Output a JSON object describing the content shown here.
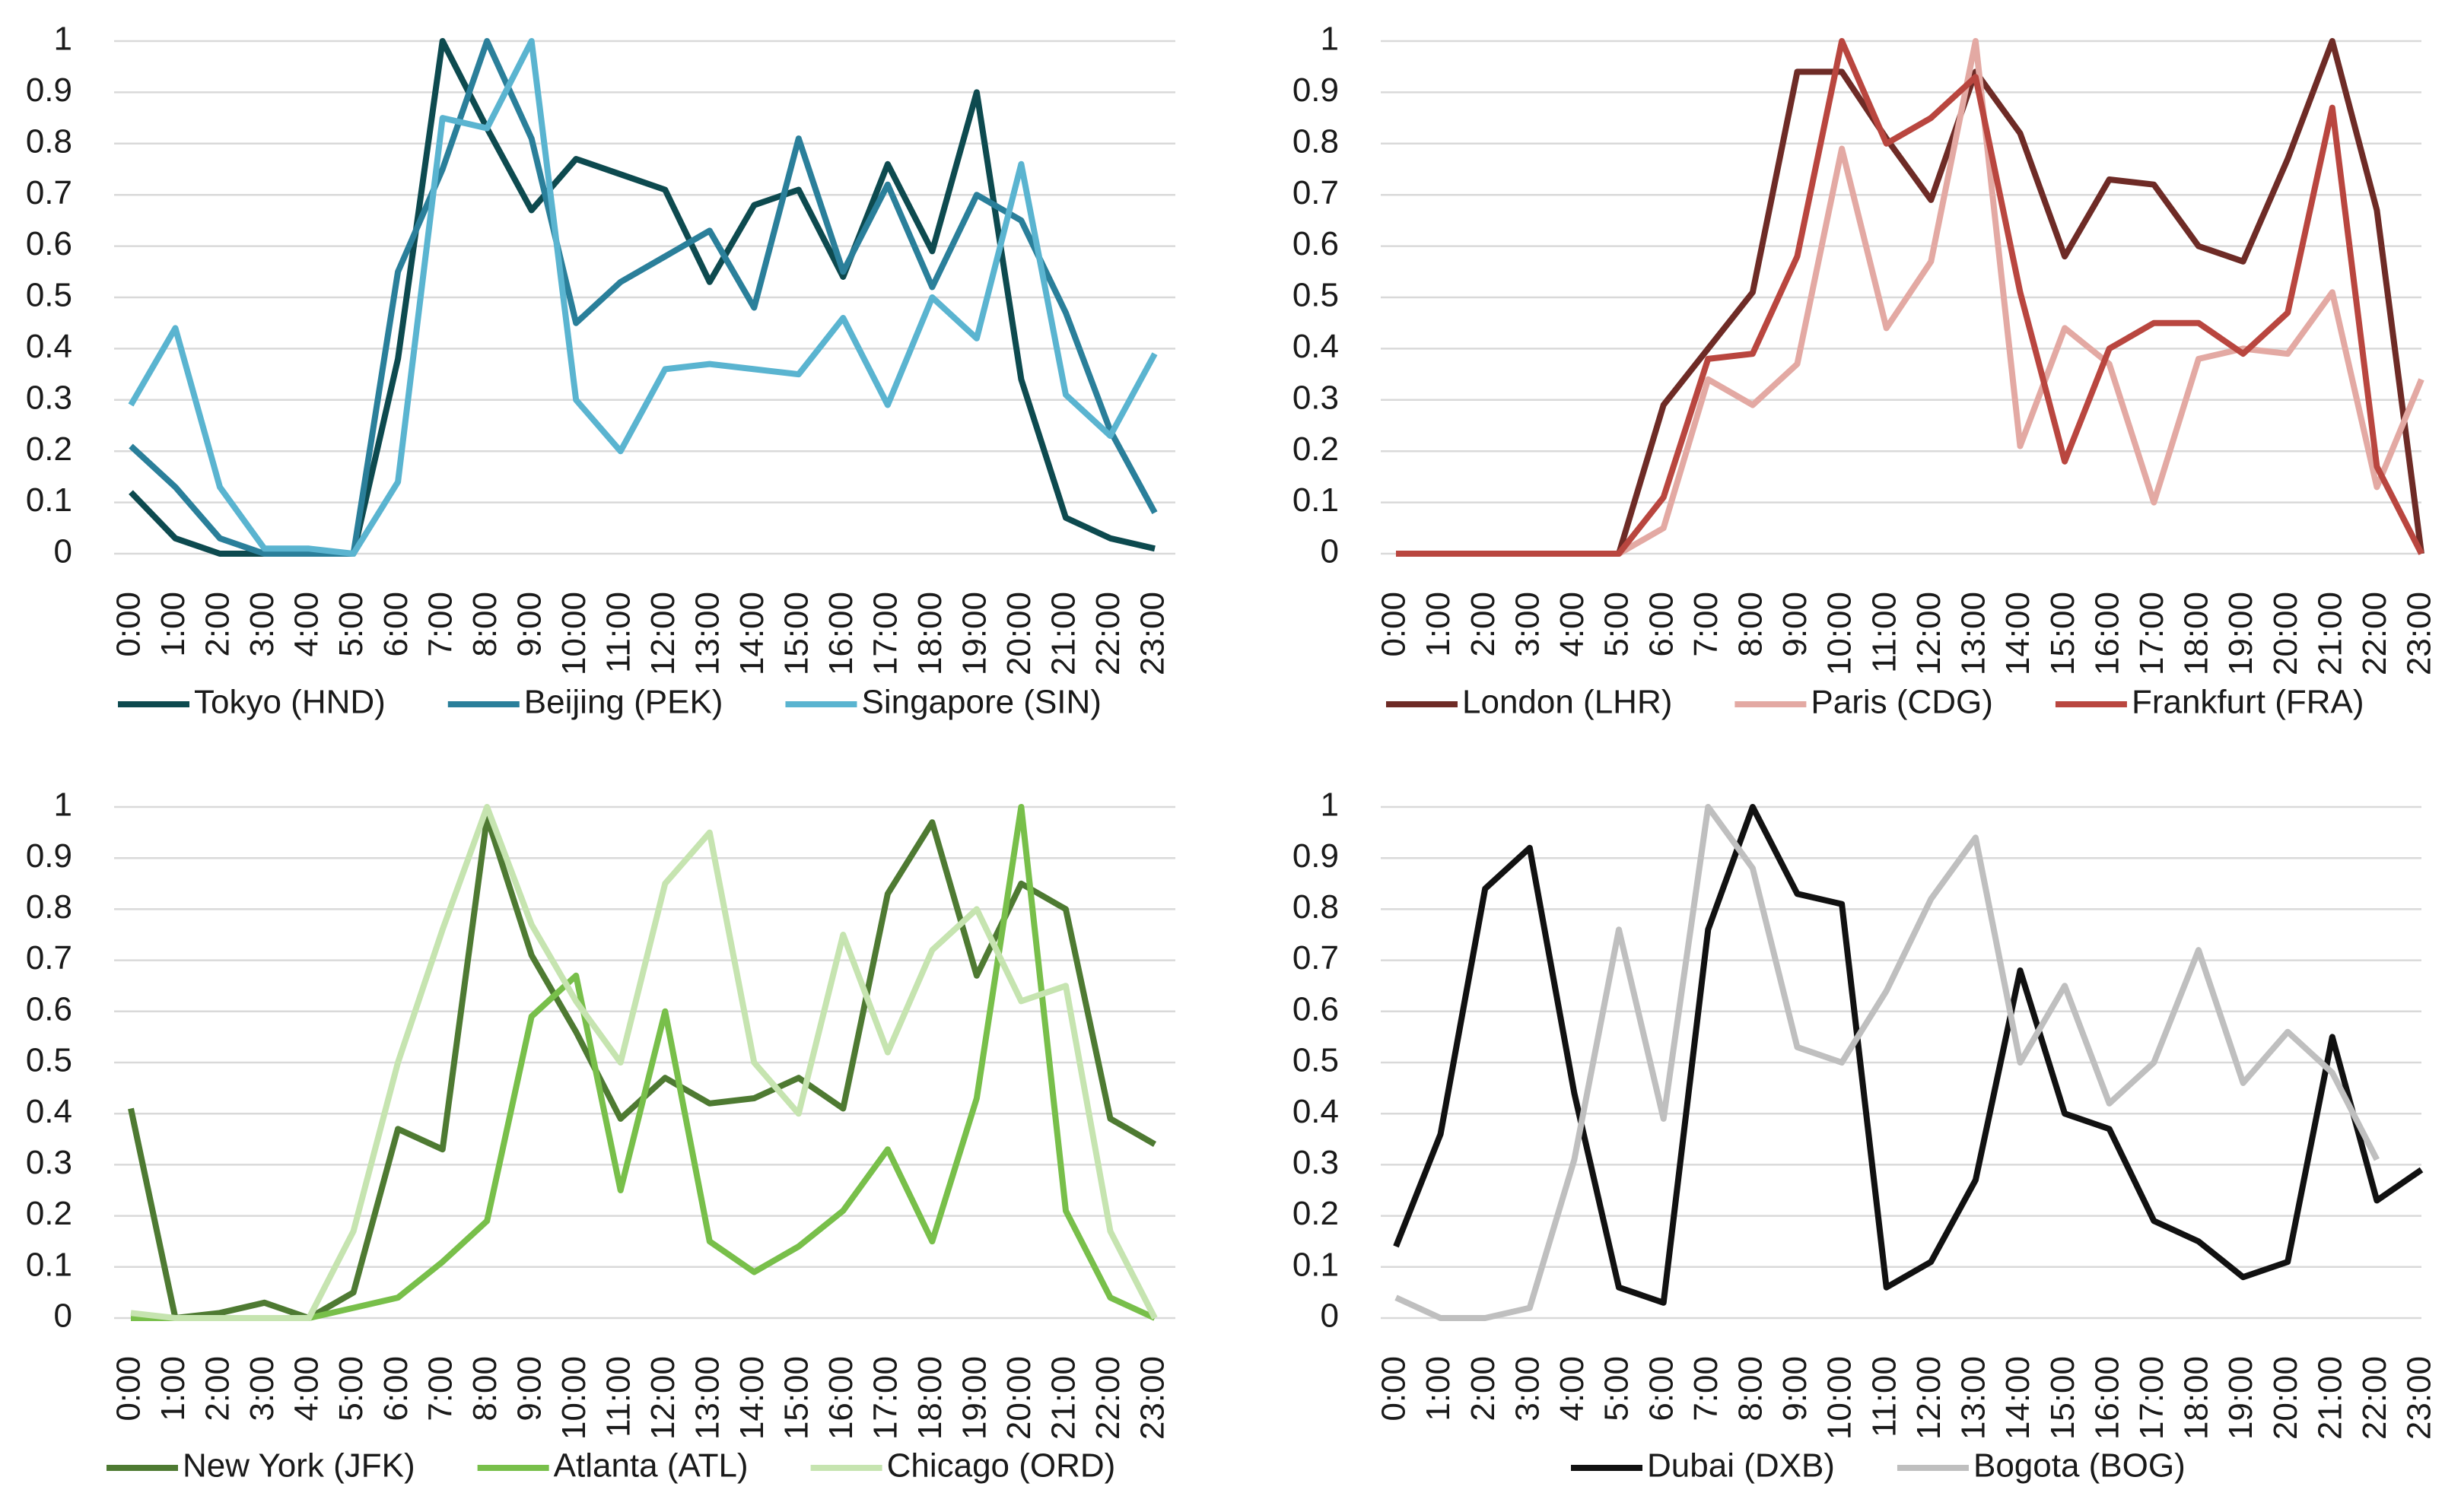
{
  "chart_data": [
    {
      "type": "line",
      "legend": "bottom",
      "grid": true,
      "ylim": [
        0,
        1
      ],
      "yticks": [
        0,
        0.1,
        0.2,
        0.3,
        0.4,
        0.5,
        0.6,
        0.7,
        0.8,
        0.9,
        1
      ],
      "categories": [
        "0:00",
        "1:00",
        "2:00",
        "3:00",
        "4:00",
        "5:00",
        "6:00",
        "7:00",
        "8:00",
        "9:00",
        "10:00",
        "11:00",
        "12:00",
        "13:00",
        "14:00",
        "15:00",
        "16:00",
        "17:00",
        "18:00",
        "19:00",
        "20:00",
        "21:00",
        "22:00",
        "23:00"
      ],
      "series": [
        {
          "name": "Tokyo (HND)",
          "color": "#0d4a4f",
          "values": [
            0.12,
            0.03,
            0,
            0,
            0,
            0,
            0.38,
            1,
            0.83,
            0.67,
            0.77,
            0.74,
            0.71,
            0.53,
            0.68,
            0.71,
            0.54,
            0.76,
            0.59,
            0.9,
            0.34,
            0.07,
            0.03,
            0.01
          ]
        },
        {
          "name": "Beijing (PEK)",
          "color": "#2a7f9a",
          "values": [
            0.21,
            0.13,
            0.03,
            0,
            0,
            0,
            0.55,
            0.75,
            1,
            0.81,
            0.45,
            0.53,
            0.58,
            0.63,
            0.48,
            0.81,
            0.55,
            0.72,
            0.52,
            0.7,
            0.65,
            0.47,
            0.24,
            0.08
          ]
        },
        {
          "name": "Singapore (SIN)",
          "color": "#5ab4d0",
          "values": [
            0.29,
            0.44,
            0.13,
            0.01,
            0.01,
            0,
            0.14,
            0.85,
            0.83,
            1,
            0.3,
            0.2,
            0.36,
            0.37,
            0.36,
            0.35,
            0.46,
            0.29,
            0.5,
            0.42,
            0.76,
            0.31,
            0.23,
            0.39
          ]
        }
      ]
    },
    {
      "type": "line",
      "legend": "bottom",
      "grid": true,
      "ylim": [
        0,
        1
      ],
      "yticks": [
        0,
        0.1,
        0.2,
        0.3,
        0.4,
        0.5,
        0.6,
        0.7,
        0.8,
        0.9,
        1
      ],
      "categories": [
        "0:00",
        "1:00",
        "2:00",
        "3:00",
        "4:00",
        "5:00",
        "6:00",
        "7:00",
        "8:00",
        "9:00",
        "10:00",
        "11:00",
        "12:00",
        "13:00",
        "14:00",
        "15:00",
        "16:00",
        "17:00",
        "18:00",
        "19:00",
        "20:00",
        "21:00",
        "22:00",
        "23:00"
      ],
      "series": [
        {
          "name": "London (LHR)",
          "color": "#6e2b26",
          "values": [
            0,
            0,
            0,
            0,
            0,
            0,
            0.29,
            0.4,
            0.51,
            0.94,
            0.94,
            0.81,
            0.69,
            0.94,
            0.82,
            0.58,
            0.73,
            0.72,
            0.6,
            0.57,
            0.77,
            1,
            0.67,
            0
          ]
        },
        {
          "name": "Paris (CDG)",
          "color": "#e3a9a3",
          "values": [
            0,
            0,
            0,
            0,
            0,
            0,
            0.05,
            0.34,
            0.29,
            0.37,
            0.79,
            0.44,
            0.57,
            1,
            0.21,
            0.44,
            0.37,
            0.1,
            0.38,
            0.4,
            0.39,
            0.51,
            0.13,
            0.34
          ]
        },
        {
          "name": "Frankfurt (FRA)",
          "color": "#b9463f",
          "values": [
            0,
            0,
            0,
            0,
            0,
            0,
            0.11,
            0.38,
            0.39,
            0.58,
            1,
            0.8,
            0.85,
            0.93,
            0.51,
            0.18,
            0.4,
            0.45,
            0.45,
            0.39,
            0.47,
            0.87,
            0.17,
            0
          ]
        }
      ]
    },
    {
      "type": "line",
      "legend": "bottom",
      "grid": true,
      "ylim": [
        0,
        1
      ],
      "yticks": [
        0,
        0.1,
        0.2,
        0.3,
        0.4,
        0.5,
        0.6,
        0.7,
        0.8,
        0.9,
        1
      ],
      "categories": [
        "0:00",
        "1:00",
        "2:00",
        "3:00",
        "4:00",
        "5:00",
        "6:00",
        "7:00",
        "8:00",
        "9:00",
        "10:00",
        "11:00",
        "12:00",
        "13:00",
        "14:00",
        "15:00",
        "16:00",
        "17:00",
        "18:00",
        "19:00",
        "20:00",
        "21:00",
        "22:00",
        "23:00"
      ],
      "series": [
        {
          "name": "New York (JFK)",
          "color": "#4e7a32",
          "values": [
            0.41,
            0,
            0.01,
            0.03,
            0,
            0.05,
            0.37,
            0.33,
            0.98,
            0.71,
            0.56,
            0.39,
            0.47,
            0.42,
            0.43,
            0.47,
            0.41,
            0.83,
            0.97,
            0.67,
            0.85,
            0.8,
            0.39,
            0.34
          ]
        },
        {
          "name": "Atlanta (ATL)",
          "color": "#78bf4a",
          "values": [
            0,
            0,
            0,
            0,
            0,
            0.02,
            0.04,
            0.11,
            0.19,
            0.59,
            0.67,
            0.25,
            0.6,
            0.15,
            0.09,
            0.14,
            0.21,
            0.33,
            0.15,
            0.43,
            1,
            0.21,
            0.04,
            0
          ]
        },
        {
          "name": "Chicago (ORD)",
          "color": "#c6e4b0",
          "values": [
            0.01,
            0,
            0,
            0,
            0,
            0.17,
            0.5,
            0.76,
            1,
            0.77,
            0.62,
            0.5,
            0.85,
            0.95,
            0.5,
            0.4,
            0.75,
            0.52,
            0.72,
            0.8,
            0.62,
            0.65,
            0.17,
            0
          ]
        }
      ]
    },
    {
      "type": "line",
      "legend": "bottom",
      "grid": true,
      "ylim": [
        0,
        1
      ],
      "yticks": [
        0,
        0.1,
        0.2,
        0.3,
        0.4,
        0.5,
        0.6,
        0.7,
        0.8,
        0.9,
        1
      ],
      "categories": [
        "0:00",
        "1:00",
        "2:00",
        "3:00",
        "4:00",
        "5:00",
        "6:00",
        "7:00",
        "8:00",
        "9:00",
        "10:00",
        "11:00",
        "12:00",
        "13:00",
        "14:00",
        "15:00",
        "16:00",
        "17:00",
        "18:00",
        "19:00",
        "20:00",
        "21:00",
        "22:00",
        "23:00"
      ],
      "series": [
        {
          "name": "Dubai (DXB)",
          "color": "#111111",
          "values": [
            0.14,
            0.36,
            0.84,
            0.92,
            0.44,
            0.06,
            0.03,
            0.76,
            1,
            0.83,
            0.81,
            0.06,
            0.11,
            0.27,
            0.68,
            0.4,
            0.37,
            0.19,
            0.15,
            0.08,
            0.11,
            0.55,
            0.23,
            0.29
          ]
        },
        {
          "name": "Bogota (BOG)",
          "color": "#bfbfbf",
          "values": [
            0.04,
            0,
            0,
            0.02,
            0.31,
            0.76,
            0.39,
            1,
            0.88,
            0.53,
            0.5,
            0.64,
            0.82,
            0.94,
            0.5,
            0.65,
            0.42,
            0.5,
            0.72,
            0.46,
            0.56,
            0.48,
            0.31,
            null
          ]
        }
      ]
    }
  ]
}
